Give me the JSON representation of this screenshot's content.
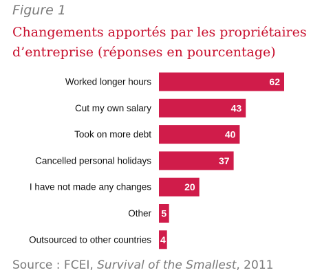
{
  "figure_label": "Figure 1",
  "chart_data": {
    "type": "bar",
    "orientation": "horizontal",
    "title": "Changements apportés par les propriétaires d’entreprise (réponses en pourcentage)",
    "categories": [
      "Worked longer hours",
      "Cut my own salary",
      "Took on more debt",
      "Cancelled personal holidays",
      "I have not made any changes",
      "Other",
      "Outsourced to other countries"
    ],
    "values": [
      62,
      43,
      40,
      37,
      20,
      5,
      4
    ],
    "data_labels": [
      "62",
      "43",
      "40",
      "37",
      "20",
      "5",
      "4"
    ],
    "xlim": [
      0,
      62
    ],
    "bar_color": "#d01c4a",
    "label_color": "#ffffff",
    "grid": false,
    "legend": "none"
  },
  "source": {
    "prefix": "Source : FCEI, ",
    "publication": "Survival of the Smallest",
    "suffix": ", 2011"
  }
}
